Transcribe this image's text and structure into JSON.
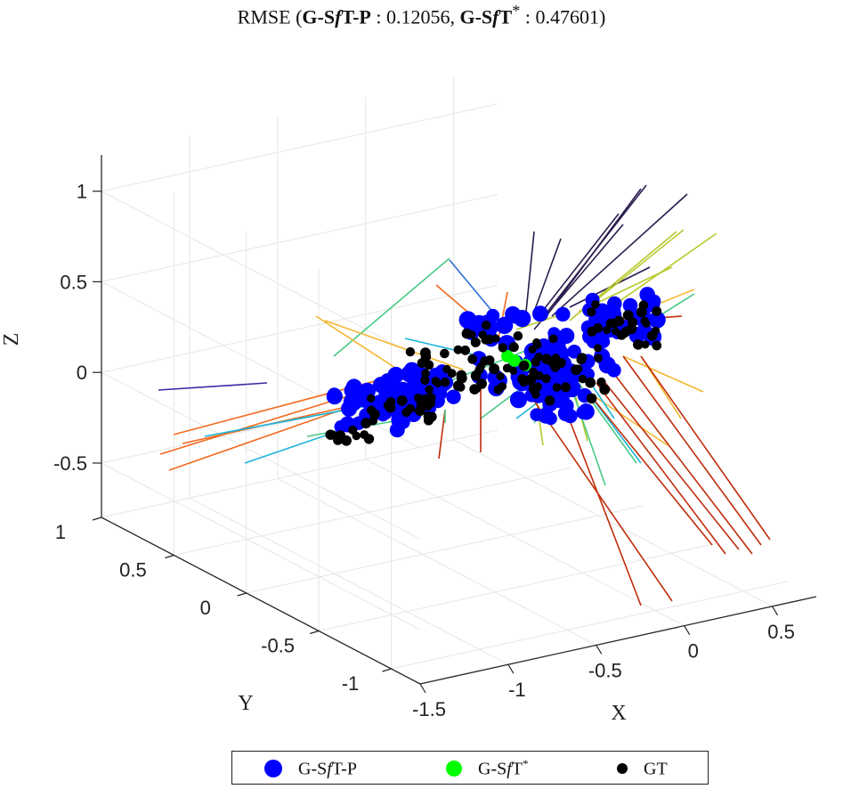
{
  "title": {
    "prefix": "RMSE (",
    "m1_a": "G-S",
    "m1_f": "f",
    "m1_b": "T-P",
    "sep1": " : ",
    "v1": "0.12056",
    "comma": ", ",
    "m2_a": "G-S",
    "m2_f": "f",
    "m2_b": "T",
    "m2_star": "*",
    "sep2": " : ",
    "v2": "0.47601",
    "suffix": ")"
  },
  "legend": {
    "items": [
      {
        "label_a": "G-S",
        "label_f": "f",
        "label_b": "T-P",
        "label_sup": "",
        "color": "#0000ff"
      },
      {
        "label_a": "G-S",
        "label_f": "f",
        "label_b": "T",
        "label_sup": "*",
        "color": "#00ff00"
      },
      {
        "label_a": "",
        "label_f": "",
        "label_b": "GT",
        "label_sup": "",
        "color": "#000000"
      }
    ]
  },
  "chart_data": {
    "type": "scatter3d",
    "xlabel": "X",
    "ylabel": "Y",
    "zlabel": "Z",
    "xlim": [
      -1.5,
      0.75
    ],
    "ylim": [
      -1.2,
      1.0
    ],
    "zlim": [
      -0.8,
      1.2
    ],
    "xticks": [
      "-1.5",
      "-1",
      "-0.5",
      "0",
      "0.5"
    ],
    "yticks": [
      "-1",
      "-0.5",
      "0",
      "0.5",
      "1"
    ],
    "zticks": [
      "-0.5",
      "0",
      "0.5",
      "1"
    ],
    "grid": true,
    "legend_position": "bottom",
    "series": [
      {
        "name": "G-SfT-P",
        "color": "#0000ff"
      },
      {
        "name": "G-SfT*",
        "color": "#00ff00"
      },
      {
        "name": "GT",
        "color": "#000000"
      }
    ],
    "colormap": [
      "#3e26a8",
      "#2c6fd6",
      "#1cb5d8",
      "#48cb86",
      "#b8c92c",
      "#f3b72f",
      "#f26a1e",
      "#c02c0a",
      "#2a1b4e"
    ]
  }
}
